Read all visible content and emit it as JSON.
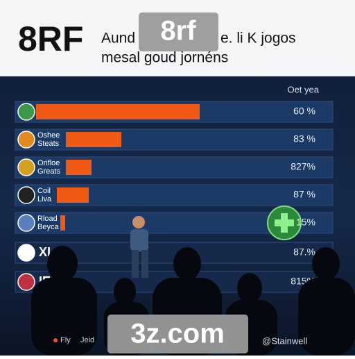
{
  "header": {
    "logo": "8RF",
    "title_line1": "Aund",
    "title_line2": "e. li K jogos",
    "subtitle": "mesal goud jornéns",
    "watermark": "8rf"
  },
  "column_header": "Oet yea",
  "rows": [
    {
      "label": "",
      "value": "60 %"
    },
    {
      "label": "Oshee Steats",
      "value": "83 %"
    },
    {
      "label": "Orifloe Greats",
      "value": "827%"
    },
    {
      "label": "Coil Liva",
      "value": "87 %"
    },
    {
      "label": "Rload Beyca",
      "value": "15%"
    },
    {
      "label": "XI",
      "value": "87.%"
    },
    {
      "label": "IE",
      "value": "815%"
    }
  ],
  "footer": {
    "legend1": "Fly",
    "legend2": "Jeid",
    "credit": "@Stainwell",
    "watermark": "3z.com"
  }
}
